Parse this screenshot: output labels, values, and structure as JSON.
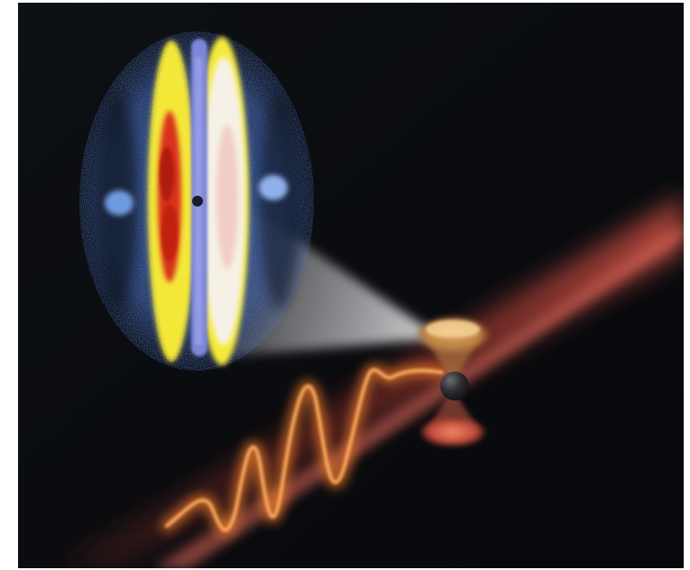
{
  "illustration": {
    "background_color": "#0a0c10",
    "accent_colors": {
      "laser_beam": "#c8443a",
      "wave_pulse": "#f07a2a",
      "cone_light": "#d9d9dc",
      "pattern_blue": "#5a7cc4",
      "pattern_yellow": "#f5e92a",
      "pattern_red": "#d62a14",
      "pattern_white": "#f3efe6",
      "center_line": "#7a82d8",
      "lobe_top": "#e0a860",
      "lobe_bottom": "#d86850",
      "atom": "#2a2a2c"
    },
    "icons": [
      "molecule-icon",
      "laser-beam-icon",
      "light-wave-icon",
      "diffraction-pattern-icon"
    ]
  }
}
